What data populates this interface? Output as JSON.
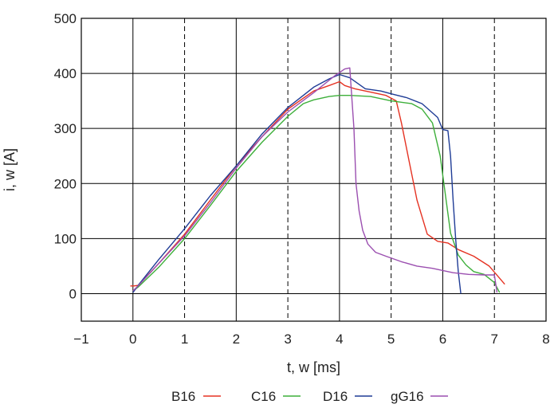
{
  "chart_data": {
    "type": "line",
    "xlabel": "t, w [ms]",
    "ylabel": "i, w [A]",
    "xlim": [
      -1,
      8
    ],
    "ylim": [
      -50,
      500
    ],
    "xticks": [
      -1,
      0,
      1,
      2,
      3,
      4,
      5,
      6,
      7,
      8
    ],
    "yticks": [
      0,
      100,
      200,
      300,
      400,
      500
    ],
    "xtick_labels": [
      "−1",
      "0",
      "1",
      "2",
      "3",
      "4",
      "5",
      "6",
      "7",
      "8"
    ],
    "ytick_labels": [
      "0",
      "100",
      "200",
      "300",
      "400",
      "500"
    ],
    "grid": true,
    "legend_position": "bottom",
    "series": [
      {
        "name": "B16",
        "color": "#e53222",
        "x": [
          -0.05,
          0.02,
          0.1,
          0.5,
          1.0,
          1.5,
          2.0,
          2.5,
          3.0,
          3.3,
          3.5,
          3.8,
          4.0,
          4.1,
          4.3,
          4.6,
          4.9,
          5.1,
          5.2,
          5.35,
          5.5,
          5.7,
          5.9,
          6.1,
          6.3,
          6.6,
          6.9,
          7.1,
          7.2
        ],
        "y": [
          14,
          14,
          15,
          55,
          108,
          170,
          232,
          285,
          335,
          355,
          368,
          378,
          385,
          378,
          372,
          366,
          360,
          350,
          310,
          240,
          170,
          108,
          95,
          92,
          80,
          68,
          50,
          28,
          17
        ]
      },
      {
        "name": "C16",
        "color": "#3daf3a",
        "x": [
          0.0,
          0.1,
          0.5,
          1.0,
          1.5,
          2.0,
          2.5,
          3.0,
          3.3,
          3.5,
          3.8,
          4.0,
          4.2,
          4.6,
          5.0,
          5.4,
          5.6,
          5.8,
          5.95,
          6.05,
          6.15,
          6.3,
          6.45,
          6.6,
          6.8,
          7.0,
          7.1
        ],
        "y": [
          5,
          12,
          48,
          100,
          160,
          222,
          275,
          322,
          345,
          352,
          358,
          360,
          360,
          358,
          350,
          345,
          335,
          310,
          250,
          180,
          110,
          70,
          52,
          40,
          35,
          20,
          2
        ]
      },
      {
        "name": "D16",
        "color": "#1f3c96",
        "x": [
          0.0,
          0.1,
          0.5,
          1.0,
          1.5,
          2.0,
          2.5,
          3.0,
          3.3,
          3.5,
          3.8,
          4.0,
          4.2,
          4.5,
          4.8,
          5.0,
          5.3,
          5.6,
          5.9,
          6.0,
          6.1,
          6.15,
          6.2,
          6.25,
          6.3,
          6.35
        ],
        "y": [
          2,
          15,
          62,
          118,
          178,
          232,
          290,
          338,
          360,
          375,
          390,
          398,
          392,
          372,
          368,
          363,
          356,
          345,
          320,
          298,
          296,
          250,
          170,
          100,
          40,
          0
        ]
      },
      {
        "name": "gG16",
        "color": "#9b4fb0",
        "x": [
          0.0,
          0.1,
          0.5,
          1.0,
          1.5,
          2.0,
          2.5,
          3.0,
          3.5,
          3.9,
          4.1,
          4.2,
          4.28,
          4.32,
          4.38,
          4.45,
          4.55,
          4.7,
          4.9,
          5.2,
          5.5,
          5.8,
          6.0,
          6.2,
          6.5,
          6.8,
          7.0,
          7.05
        ],
        "y": [
          5,
          14,
          55,
          105,
          165,
          228,
          285,
          330,
          365,
          395,
          408,
          410,
          300,
          200,
          150,
          115,
          90,
          75,
          68,
          58,
          50,
          46,
          42,
          38,
          35,
          34,
          34,
          2
        ]
      }
    ]
  }
}
